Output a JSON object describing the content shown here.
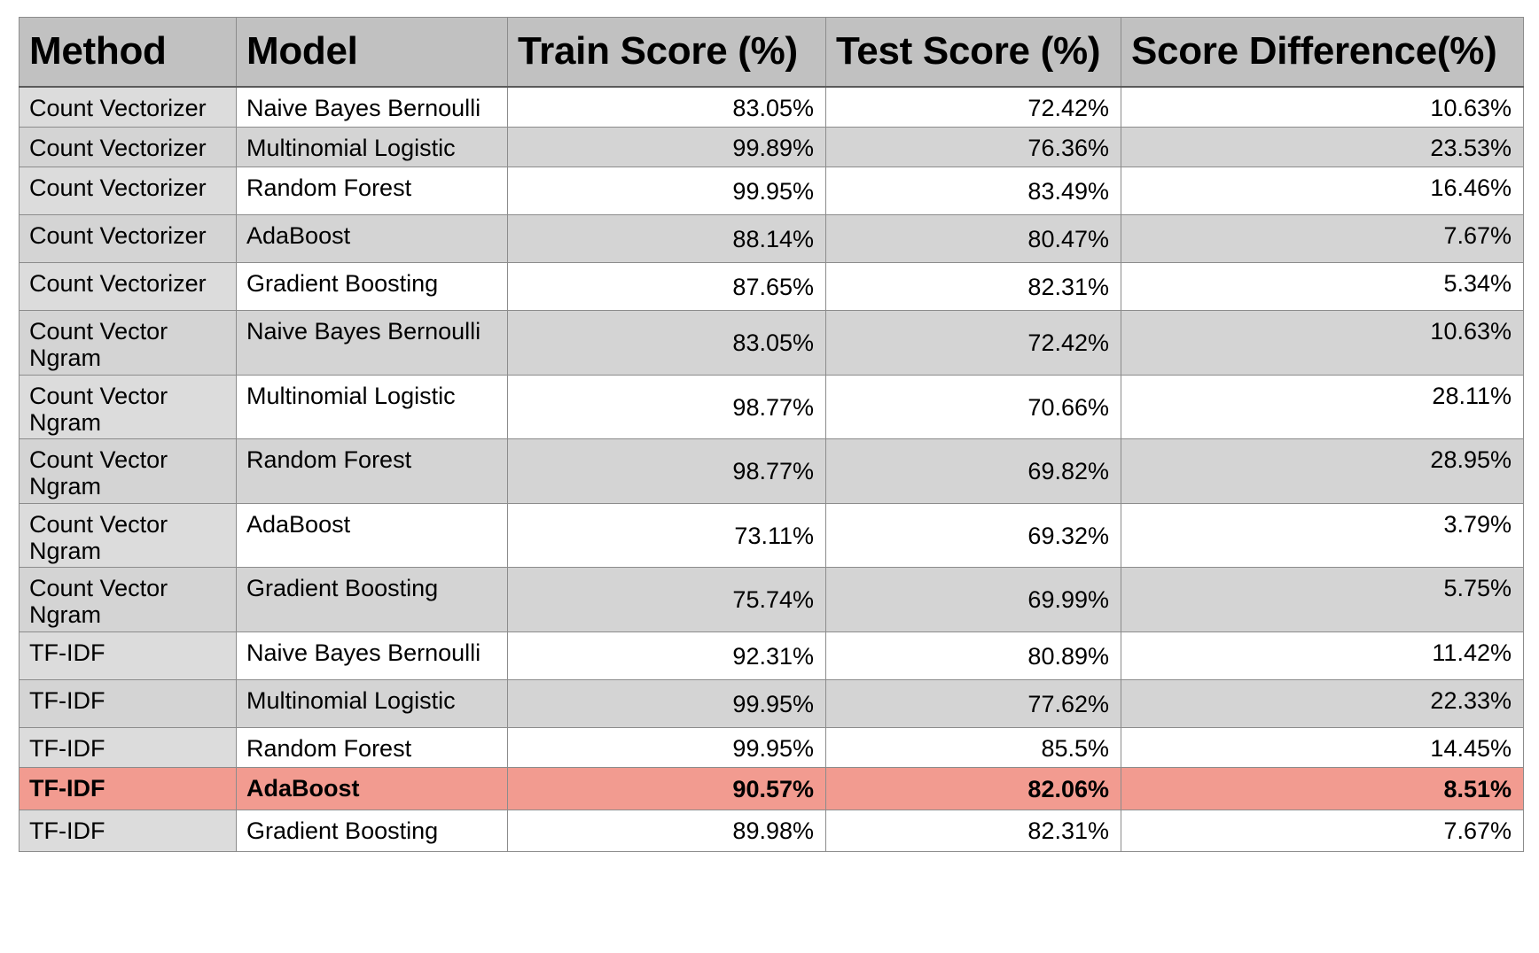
{
  "table": {
    "headers": {
      "method": "Method",
      "model": "Model",
      "train": "Train Score (%)",
      "test": "Test Score (%)",
      "diff": "Score Difference(%)"
    },
    "rows": [
      {
        "method": "Count Vectorizer",
        "model": "Naive Bayes Bernoulli",
        "train": "83.05%",
        "test": "72.42%",
        "diff": "10.63%"
      },
      {
        "method": "Count Vectorizer",
        "model": "Multinomial Logistic",
        "train": "99.89%",
        "test": "76.36%",
        "diff": "23.53%"
      },
      {
        "method": "Count Vectorizer",
        "model": "Random Forest",
        "train": "99.95%",
        "test": "83.49%",
        "diff": "16.46%"
      },
      {
        "method": "Count Vectorizer",
        "model": "AdaBoost",
        "train": "88.14%",
        "test": "80.47%",
        "diff": "7.67%"
      },
      {
        "method": "Count Vectorizer",
        "model": "Gradient Boosting",
        "train": "87.65%",
        "test": "82.31%",
        "diff": "5.34%"
      },
      {
        "method": "Count Vector Ngram",
        "model": "Naive Bayes Bernoulli",
        "train": "83.05%",
        "test": "72.42%",
        "diff": "10.63%"
      },
      {
        "method": "Count Vector Ngram",
        "model": "Multinomial Logistic",
        "train": "98.77%",
        "test": "70.66%",
        "diff": "28.11%"
      },
      {
        "method": "Count Vector Ngram",
        "model": "Random Forest",
        "train": "98.77%",
        "test": "69.82%",
        "diff": "28.95%"
      },
      {
        "method": "Count Vector Ngram",
        "model": "AdaBoost",
        "train": "73.11%",
        "test": "69.32%",
        "diff": "3.79%"
      },
      {
        "method": "Count Vector Ngram",
        "model": "Gradient Boosting",
        "train": "75.74%",
        "test": "69.99%",
        "diff": "5.75%"
      },
      {
        "method": "TF-IDF",
        "model": "Naive Bayes Bernoulli",
        "train": "92.31%",
        "test": "80.89%",
        "diff": "11.42%"
      },
      {
        "method": "TF-IDF",
        "model": "Multinomial Logistic",
        "train": "99.95%",
        "test": "77.62%",
        "diff": "22.33%"
      },
      {
        "method": "TF-IDF",
        "model": "Random Forest",
        "train": "99.95%",
        "test": "85.5%",
        "diff": "14.45%"
      },
      {
        "method": "TF-IDF",
        "model": "AdaBoost",
        "train": "90.57%",
        "test": "82.06%",
        "diff": "8.51%"
      },
      {
        "method": "TF-IDF",
        "model": "Gradient Boosting",
        "train": "89.98%",
        "test": "82.31%",
        "diff": "7.67%"
      }
    ]
  },
  "colors": {
    "header_bg": "#c1c1c1",
    "alt_row_bg": "#d4d4d4",
    "method_col_bg": "#dcdcdc",
    "highlight_bg": "#f29b90",
    "grid_line": "#8c8c8c"
  }
}
